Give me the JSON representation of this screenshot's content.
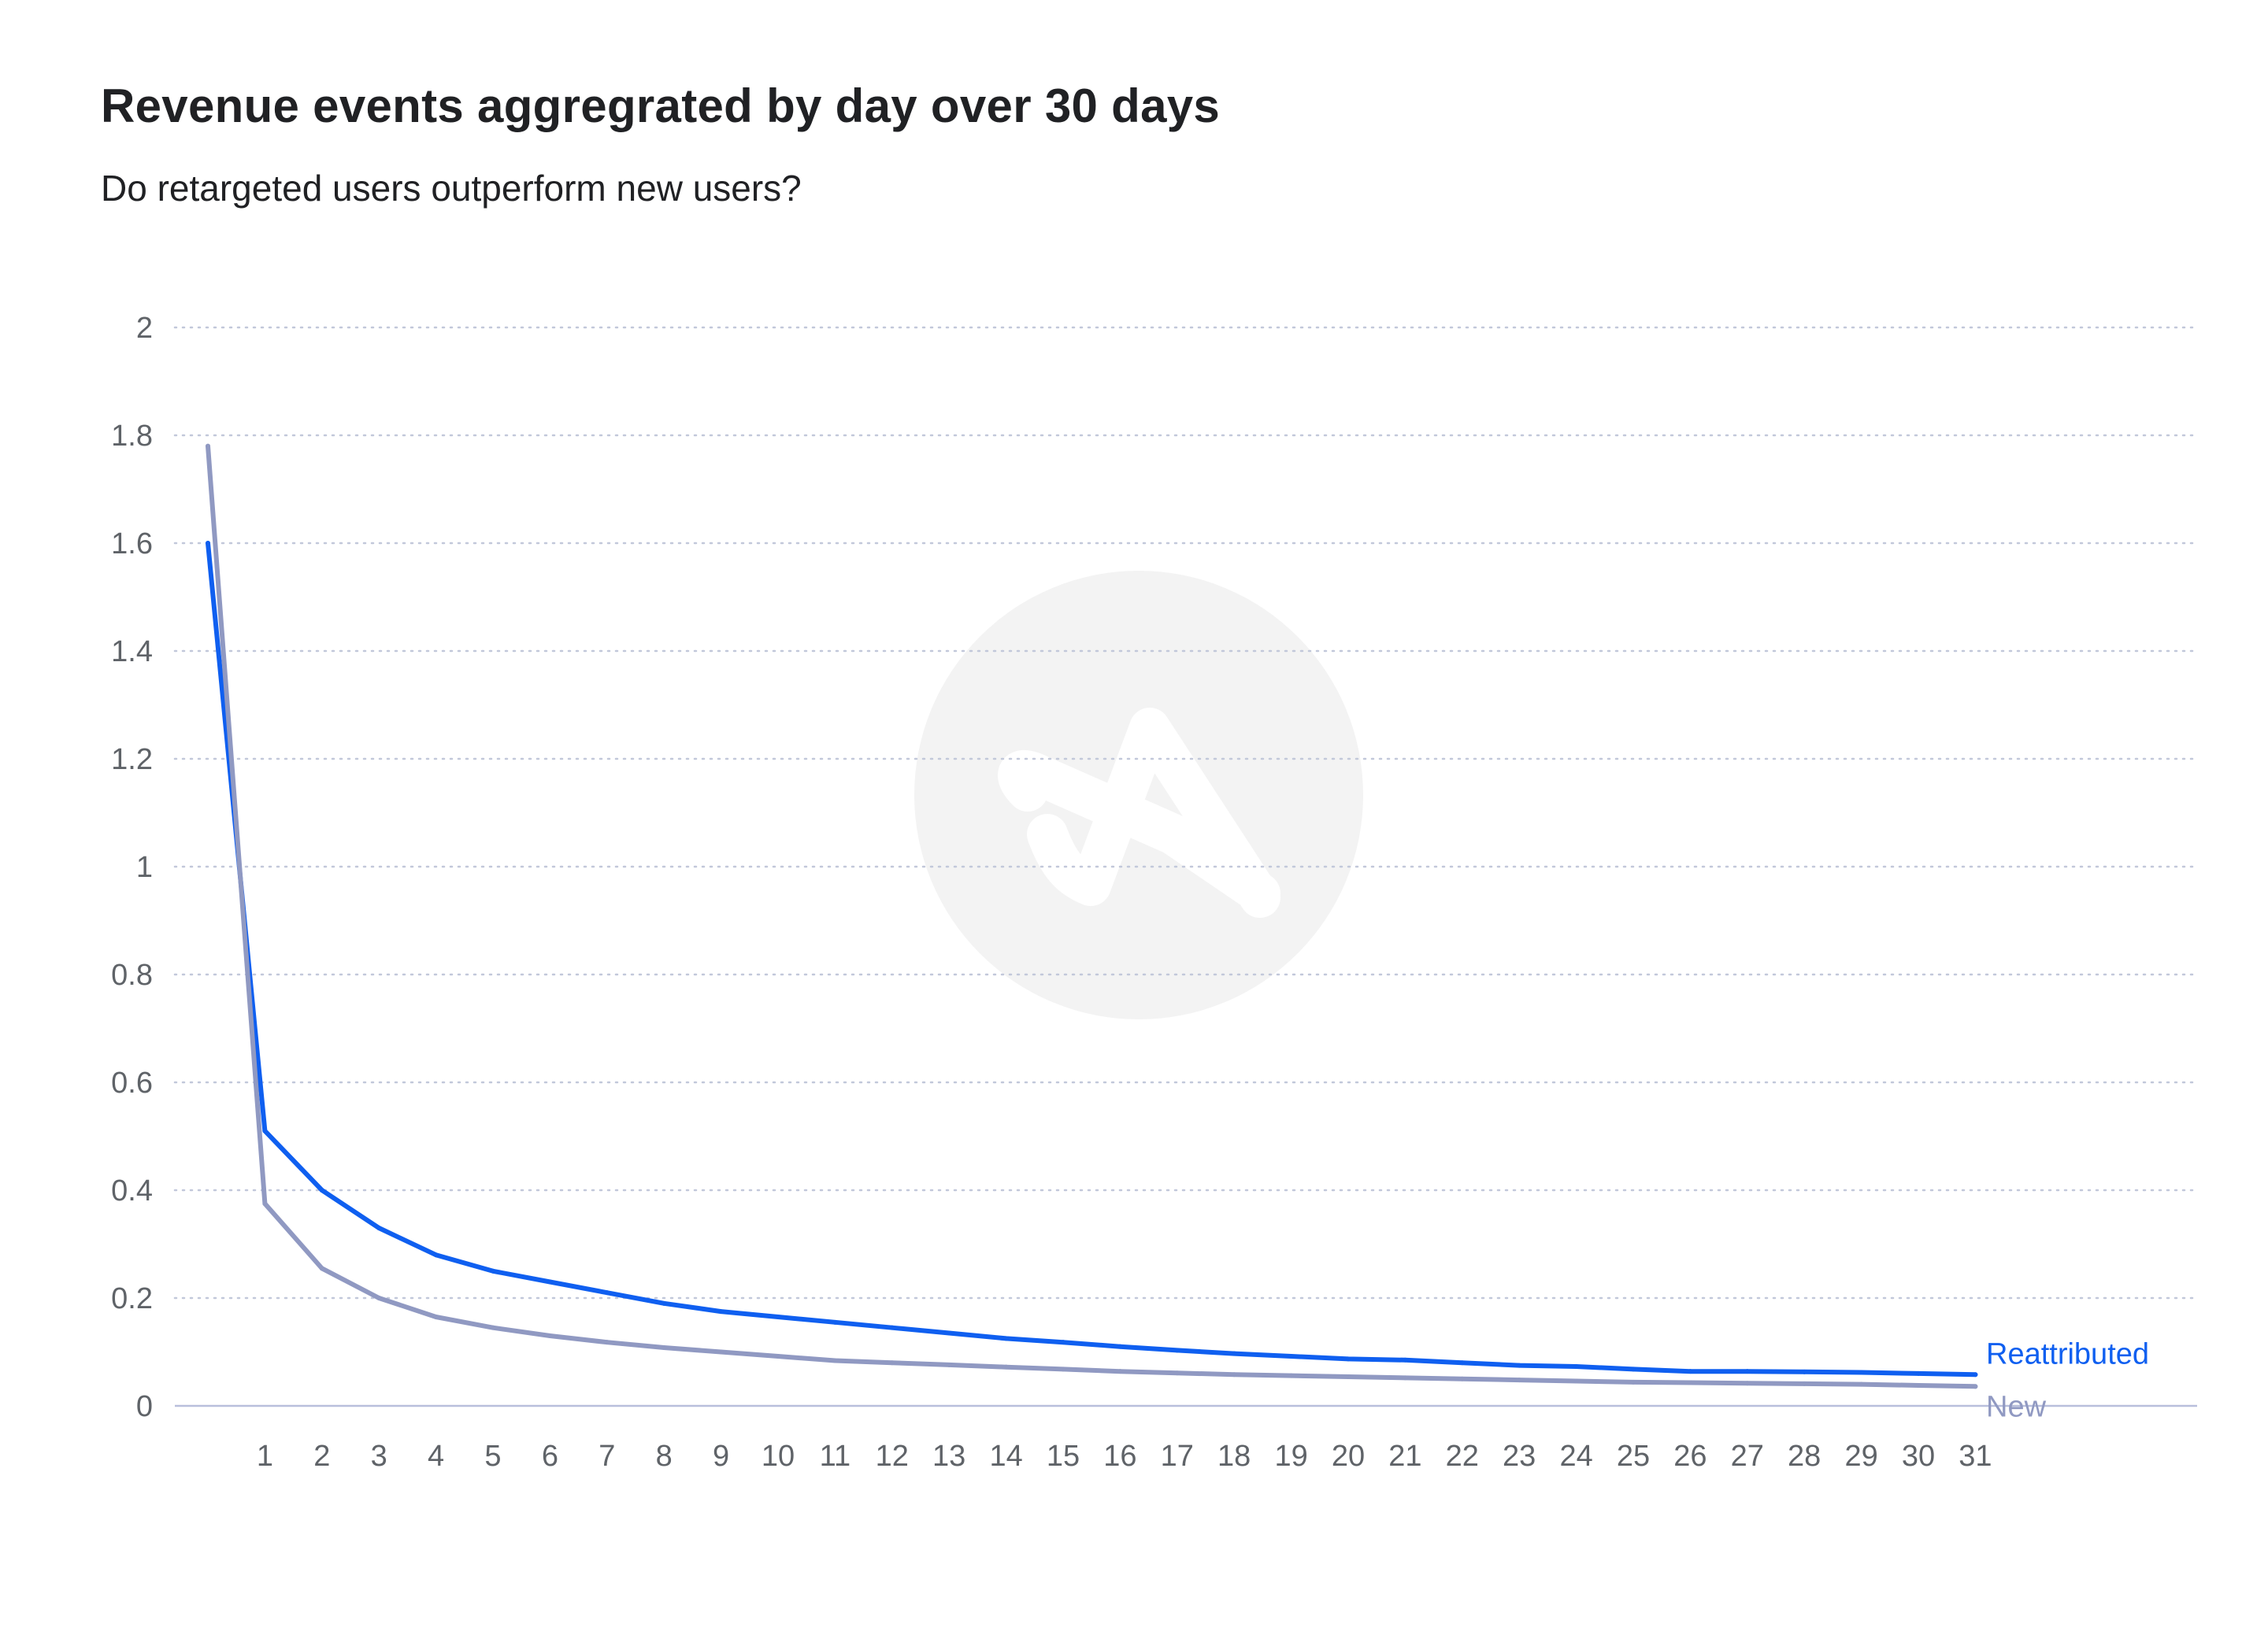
{
  "title": "Revenue events aggregrated by day over 30 days",
  "subtitle": "Do retargeted users outperform new users?",
  "colors": {
    "reattributed": "#0f5ff0",
    "new": "#9099c2",
    "grid": "#c2c8da",
    "baseline": "#b9bfdc",
    "watermark": "#f3f3f3",
    "text": "#202124",
    "tick": "#5f6368"
  },
  "watermark": {
    "icon": "adjust-logo-icon"
  },
  "chart_data": {
    "type": "line",
    "x": [
      0,
      1,
      2,
      3,
      4,
      5,
      6,
      7,
      8,
      9,
      10,
      11,
      12,
      13,
      14,
      15,
      16,
      17,
      18,
      19,
      20,
      21,
      22,
      23,
      24,
      25,
      26,
      27,
      28,
      29,
      30,
      31
    ],
    "xticks": [
      "1",
      "2",
      "3",
      "4",
      "5",
      "6",
      "7",
      "8",
      "9",
      "10",
      "11",
      "12",
      "13",
      "14",
      "15",
      "16",
      "17",
      "18",
      "19",
      "20",
      "21",
      "22",
      "23",
      "24",
      "25",
      "26",
      "27",
      "28",
      "29",
      "30",
      "31"
    ],
    "ylim": [
      0,
      2
    ],
    "yticks": [
      "0",
      "0.2",
      "0.4",
      "0.6",
      "0.8",
      "1",
      "1.2",
      "1.4",
      "1.6",
      "1.8",
      "2"
    ],
    "grid": true,
    "legend": "end-of-lines",
    "series": [
      {
        "name": "Reattributed",
        "color": "#0f5ff0",
        "values": [
          1.6,
          0.51,
          0.4,
          0.33,
          0.28,
          0.25,
          0.23,
          0.21,
          0.19,
          0.175,
          0.165,
          0.155,
          0.145,
          0.135,
          0.125,
          0.118,
          0.11,
          0.103,
          0.097,
          0.092,
          0.087,
          0.085,
          0.08,
          0.075,
          0.073,
          0.068,
          0.064,
          0.064,
          0.063,
          0.062,
          0.06,
          0.058
        ]
      },
      {
        "name": "New",
        "color": "#9099c2",
        "values": [
          1.78,
          0.375,
          0.255,
          0.2,
          0.165,
          0.145,
          0.13,
          0.118,
          0.108,
          0.1,
          0.092,
          0.084,
          0.08,
          0.076,
          0.072,
          0.068,
          0.064,
          0.061,
          0.058,
          0.056,
          0.054,
          0.052,
          0.05,
          0.048,
          0.046,
          0.044,
          0.043,
          0.042,
          0.041,
          0.04,
          0.038,
          0.036
        ]
      }
    ]
  }
}
